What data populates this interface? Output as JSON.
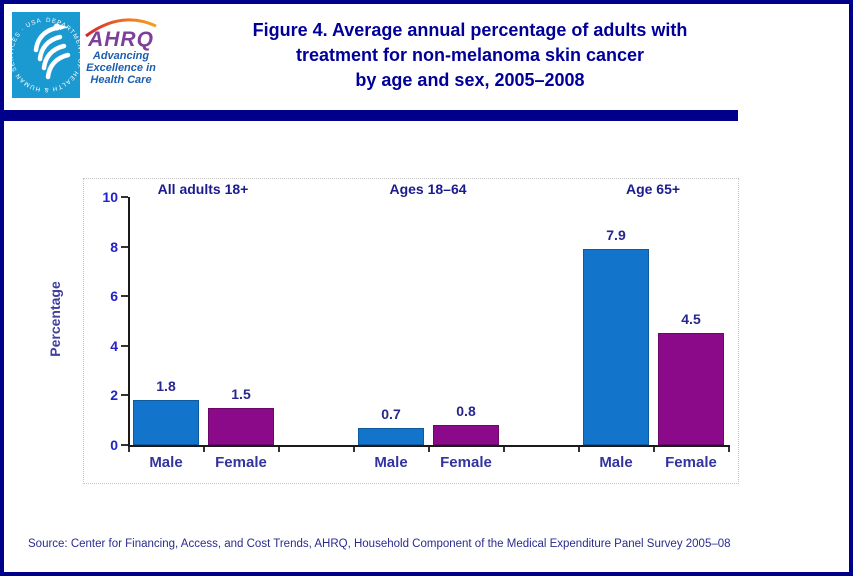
{
  "header": {
    "logo": {
      "seal_ring_text": "DEPARTMENT OF HEALTH & HUMAN SERVICES · USA",
      "ahrq_acronym": "AHRQ",
      "tagline_lines": [
        "Advancing",
        "Excellence in",
        "Health Care"
      ]
    },
    "title_lines": [
      "Figure 4. Average annual percentage of adults with",
      "treatment for non-melanoma skin cancer",
      "by age and sex, 2005–2008"
    ]
  },
  "chart_data": {
    "type": "bar",
    "title": "Figure 4. Average annual percentage of adults with treatment for non-melanoma skin cancer by age and sex, 2005–2008",
    "ylabel": "Percentage",
    "xlabel": "",
    "ylim": [
      0,
      10
    ],
    "yticks": [
      0,
      2,
      4,
      6,
      8,
      10
    ],
    "grid": false,
    "legend": "none",
    "groups": [
      "All adults 18+",
      "Ages 18–64",
      "Age 65+"
    ],
    "categories": [
      "Male",
      "Female"
    ],
    "series": [
      {
        "name": "Male",
        "color": "#1374CC",
        "values": [
          1.8,
          0.7,
          7.9
        ]
      },
      {
        "name": "Female",
        "color": "#8A0A8A",
        "values": [
          1.5,
          0.8,
          4.5
        ]
      }
    ],
    "value_labels_shown": true
  },
  "footer": {
    "source": "Source: Center for Financing, Access, and Cost Trends, AHRQ, Household Component of the Medical Expenditure Panel Survey 2005–08"
  },
  "colors": {
    "border_navy": "#00008B",
    "title_blue": "#000099",
    "bar_male_blue": "#1374CC",
    "bar_female_purple": "#8A0A8A",
    "seal_blue": "#1B9AD2",
    "ahrq_purple": "#7D3F98",
    "tagline_blue": "#1C5FAE"
  }
}
